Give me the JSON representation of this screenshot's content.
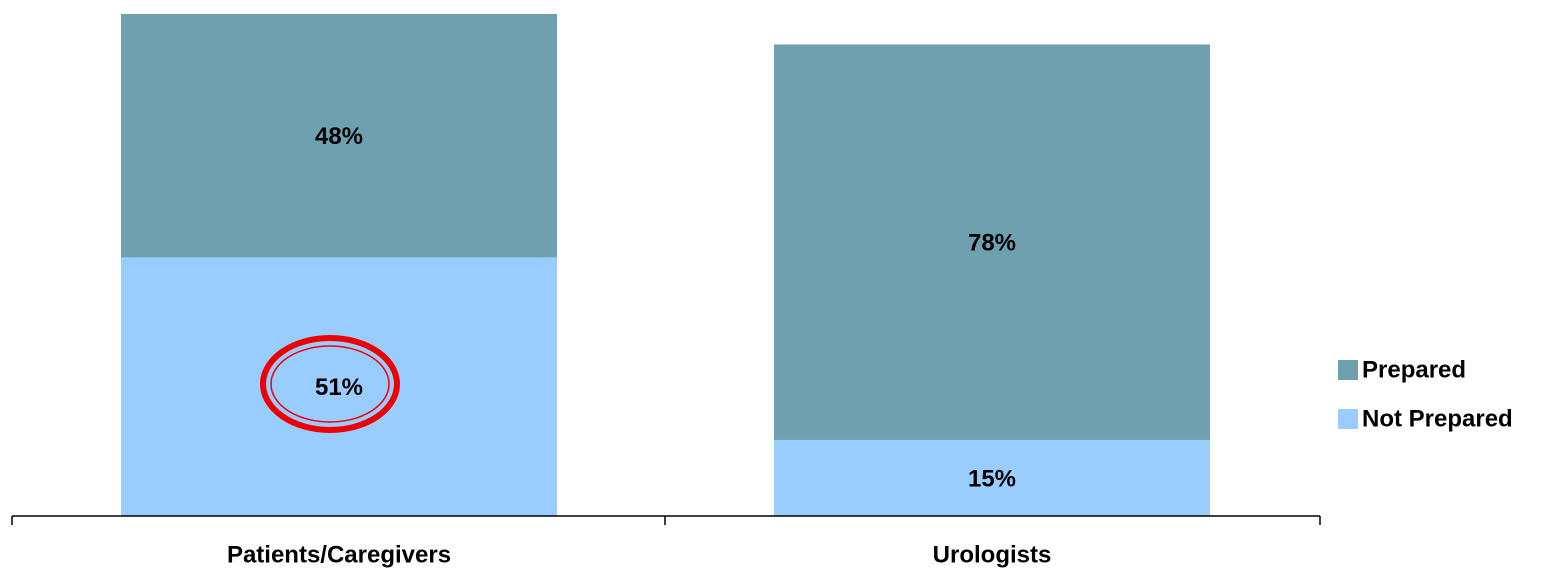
{
  "chart_data": {
    "type": "stacked-bar",
    "categories": [
      "Patients/Caregivers",
      "Urologists"
    ],
    "series": [
      {
        "name": "Not Prepared",
        "color": "#99ccff",
        "values": [
          51,
          15
        ],
        "value_labels": [
          "51%",
          "15%"
        ]
      },
      {
        "name": "Prepared",
        "color": "#6fa0af",
        "values": [
          48,
          78
        ],
        "value_labels": [
          "48%",
          "78%"
        ]
      }
    ]
  }
}
